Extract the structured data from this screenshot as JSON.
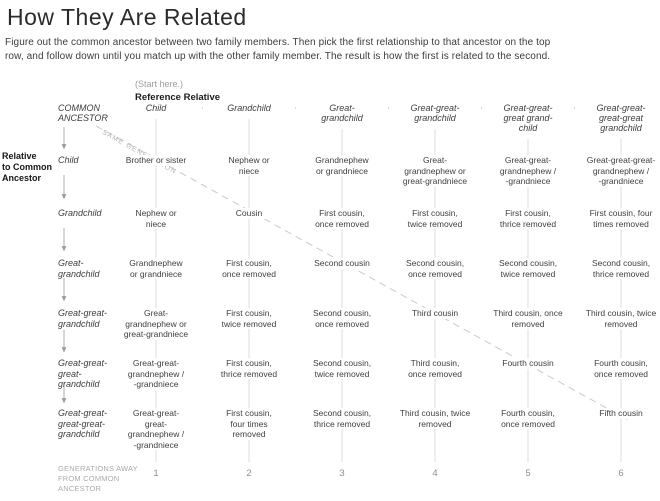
{
  "title": "How They Are Related",
  "description": "Figure out the common ancestor between two family members. Then pick the first relationship to that ancestor on the top\nrow, and follow down until you match up with the other family member. The result is how the first is related to the second.",
  "start_here": "(Start here.)",
  "reference_relative": "Reference Relative",
  "common_ancestor": "COMMON\nANCESTOR",
  "same_generation": "SAME GENERATION",
  "row_axis_label": "Relative\nto Common\nAncestor",
  "footer_label": "GENERATIONS AWAY\nFROM COMMON\nANCESTOR",
  "columns": [
    {
      "header": "Child",
      "generation": "1"
    },
    {
      "header": "Grandchild",
      "generation": "2"
    },
    {
      "header": "Great-\ngrandchild",
      "generation": "3"
    },
    {
      "header": "Great-great-\ngrandchild",
      "generation": "4"
    },
    {
      "header": "Great-great-\ngreat grand-\nchild",
      "generation": "5"
    },
    {
      "header": "Great-great-\ngreat-great\ngrandchild",
      "generation": "6"
    }
  ],
  "rows": [
    {
      "label": "Child",
      "cells": [
        "Brother or sister",
        "Nephew or\nniece",
        "Grandnephew\nor grandniece",
        "Great-\ngrandnephew or\ngreat-grandniece",
        "Great-great-\ngrandnephew /\n-grandniece",
        "Great-great-great-\ngrandnephew /\n-grandniece"
      ]
    },
    {
      "label": "Grandchild",
      "cells": [
        "Nephew or\nniece",
        "Cousin",
        "First cousin,\nonce removed",
        "First cousin,\ntwice removed",
        "First cousin,\nthrice removed",
        "First cousin, four\ntimes removed"
      ]
    },
    {
      "label": "Great-\ngrandchild",
      "cells": [
        "Grandnephew\nor grandniece",
        "First cousin,\nonce removed",
        "Second cousin",
        "Second cousin,\nonce removed",
        "Second cousin,\ntwice removed",
        "Second cousin,\nthrice removed"
      ]
    },
    {
      "label": "Great-great-\ngrandchild",
      "cells": [
        "Great-\ngrandnephew or\ngreat-grandniece",
        "First cousin,\ntwice removed",
        "Second cousin,\nonce removed",
        "Third cousin",
        "Third cousin, once\nremoved",
        "Third cousin, twice\nremoved"
      ]
    },
    {
      "label": "Great-great-\ngreat-\ngrandchild",
      "cells": [
        "Great-great-\ngrandnephew /\n-grandniece",
        "First cousin,\nthrice removed",
        "Second cousin,\ntwice removed",
        "Third cousin,\nonce removed",
        "Fourth cousin",
        "Fourth cousin,\nonce removed"
      ]
    },
    {
      "label": "Great-great-\ngreat-great-\ngrandchild",
      "cells": [
        "Great-great-\ngreat-\ngrandnephew /\n-grandniece",
        "First cousin,\nfour times\nremoved",
        "Second cousin,\nthrice removed",
        "Third cousin, twice\nremoved",
        "Fourth cousin,\nonce removed",
        "Fifth cousin"
      ]
    }
  ],
  "colors": {
    "text": "#3d3d3d",
    "muted_text": "#ababab",
    "column_line": "#dedede",
    "arrow": "#9a9a9a",
    "same_generation_dash": "#c9c9c9"
  }
}
